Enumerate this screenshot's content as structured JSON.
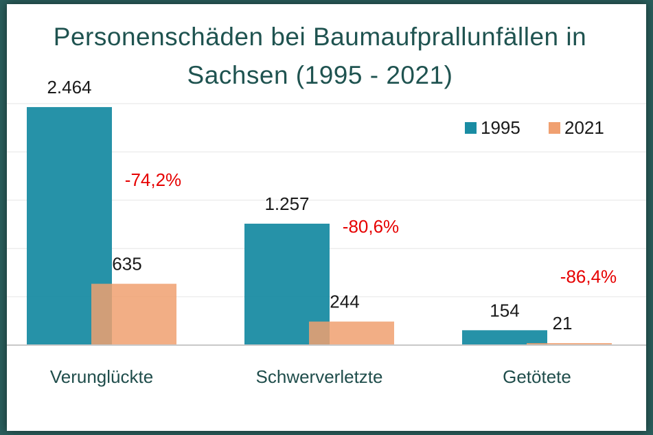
{
  "chart_data": {
    "type": "bar",
    "title": "Personenschäden bei Baumaufprallunfällen in Sachsen (1995 - 2021)",
    "title_lines": [
      "Personenschäden bei Baumaufprallunfällen in",
      "Sachsen (1995 - 2021)"
    ],
    "categories": [
      "Verunglückte",
      "Schwerverletzte",
      "Getötete"
    ],
    "series": [
      {
        "name": "1995",
        "values": [
          2464,
          1257,
          154
        ],
        "labels": [
          "2.464",
          "1.257",
          "154"
        ],
        "color": "#1a8ca3"
      },
      {
        "name": "2021",
        "values": [
          635,
          244,
          21
        ],
        "labels": [
          "635",
          "244",
          "21"
        ],
        "color": "#f0a070"
      }
    ],
    "change_labels": [
      "-74,2%",
      "-80,6%",
      "-86,4%"
    ],
    "change_color": "#e60000",
    "ylim": [
      0,
      2500
    ],
    "grid": true,
    "legend_position": "top-right",
    "xlabel": "",
    "ylabel": ""
  }
}
